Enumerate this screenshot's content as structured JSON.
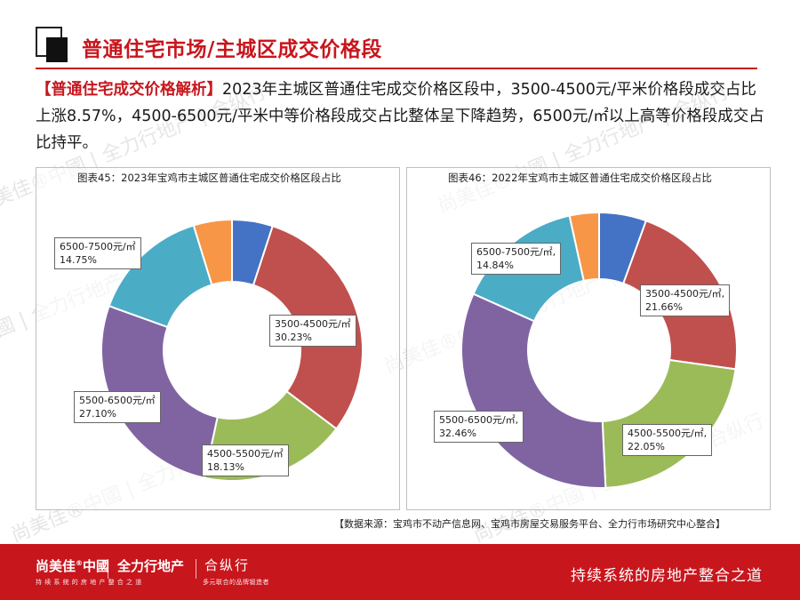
{
  "page": {
    "title": "普通住宅市场/主城区成交价格段",
    "intro_highlight": "【普通住宅成交价格解析】",
    "intro_text": "2023年主城区普通住宅成交价格区段中，3500-4500元/平米价格段成交占比上涨8.57%，4500-6500元/平米中等价格段成交占比整体呈下降趋势，6500元/㎡以上高等价格段成交占比持平。",
    "source": "【数据来源：宝鸡市不动产信息网、宝鸡市房屋交易服务平台、全力行市场研究中心整合】"
  },
  "watermark": {
    "text": "尚美佳®中國 | 全力行地产 | 合纵行"
  },
  "footer": {
    "brand1": "尚美佳",
    "brand1_mark": "®",
    "brand1_tail": "中國",
    "brand2": "全力行地产",
    "brand3": "合纵行",
    "sub1": "持续系统的房地产整合之道",
    "sub2": "多元联合的品牌锻造者",
    "slogan": "持续系统的房地产整合之道"
  },
  "colors": {
    "accent": "#c8161d",
    "segments": [
      "#4472c4",
      "#c0504d",
      "#9bbb59",
      "#8064a2",
      "#4bacc6",
      "#f79646"
    ]
  },
  "chart_data": [
    {
      "type": "pie",
      "title": "图表45：2023年宝鸡市主城区普通住宅成交价格区段占比",
      "segments": [
        {
          "name": "",
          "value": 5.04
        },
        {
          "name": "3500-4500元/㎡",
          "label": "30.23%",
          "value": 30.23
        },
        {
          "name": "4500-5500元/㎡",
          "label": "18.13%",
          "value": 18.13
        },
        {
          "name": "5500-6500元/㎡",
          "label": "27.10%",
          "value": 27.1
        },
        {
          "name": "6500-7500元/㎡",
          "label": "14.75%",
          "value": 14.75
        },
        {
          "name": "",
          "value": 4.75
        }
      ]
    },
    {
      "type": "pie",
      "title": "图表46：2022年宝鸡市主城区普通住宅成交价格区段占比",
      "segments": [
        {
          "name": "",
          "value": 5.54
        },
        {
          "name": "3500-4500元/㎡,",
          "label": "21.66%",
          "value": 21.66
        },
        {
          "name": "4500-5500元/㎡,",
          "label": "22.05%",
          "value": 22.05
        },
        {
          "name": "5500-6500元/㎡,",
          "label": "32.46%",
          "value": 32.46
        },
        {
          "name": "6500-7500元/㎡,",
          "label": "14.84%",
          "value": 14.84
        },
        {
          "name": "",
          "value": 3.45
        }
      ]
    }
  ]
}
